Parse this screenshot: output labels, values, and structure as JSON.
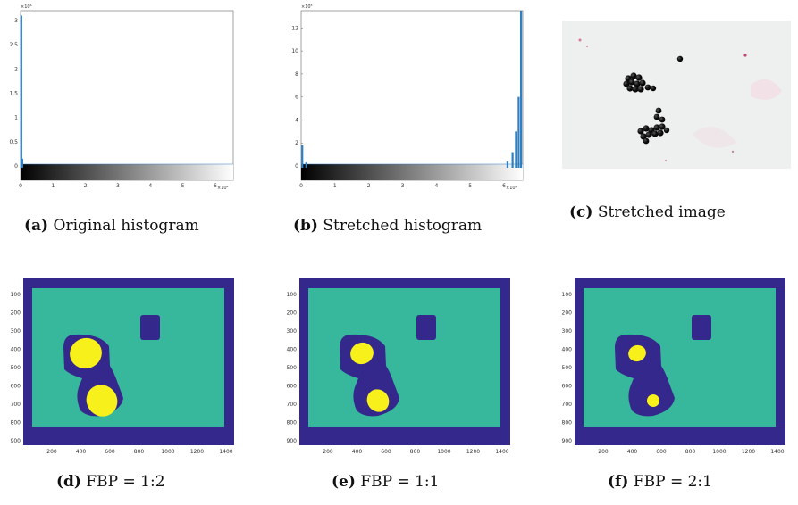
{
  "panels": {
    "a": {
      "letter": "(a)",
      "caption": "Original histogram",
      "chart_data": {
        "type": "bar",
        "title": "",
        "y_multiplier": "×10⁶",
        "x_multiplier": "×10⁴",
        "yticks": [
          "3",
          "2.5",
          "2",
          "1.5",
          "1",
          "0.5",
          "0"
        ],
        "xticks": [
          "0",
          "1",
          "2",
          "3",
          "4",
          "5",
          "6"
        ],
        "xlim": [
          0,
          65535
        ],
        "ylim": [
          0,
          3.2
        ],
        "bars": [
          {
            "x": 200,
            "value": 3.1
          },
          {
            "x": 500,
            "value": 0.15
          }
        ],
        "bar_color": "#2f7fc1"
      }
    },
    "b": {
      "letter": "(b)",
      "caption": "Stretched histogram",
      "chart_data": {
        "type": "bar",
        "title": "",
        "y_multiplier": "×10⁵",
        "x_multiplier": "×10⁴",
        "yticks": [
          "12",
          "10",
          "8",
          "6",
          "4",
          "2",
          "0"
        ],
        "xticks": [
          "0",
          "1",
          "2",
          "3",
          "4",
          "5",
          "6"
        ],
        "xlim": [
          0,
          65535
        ],
        "ylim": [
          0,
          13.5
        ],
        "bars": [
          {
            "x": 300,
            "value": 1.8
          },
          {
            "x": 1500,
            "value": 0.3
          },
          {
            "x": 61000,
            "value": 0.4
          },
          {
            "x": 62500,
            "value": 1.2
          },
          {
            "x": 63500,
            "value": 3.0
          },
          {
            "x": 64300,
            "value": 6.0
          },
          {
            "x": 65000,
            "value": 13.5
          }
        ],
        "bar_color": "#2f7fc1"
      }
    },
    "c": {
      "letter": "(c)",
      "caption": "Stretched image"
    },
    "d": {
      "letter": "(d)",
      "caption": "FBP = 1:2"
    },
    "e": {
      "letter": "(e)",
      "caption": "FBP = 1:1"
    },
    "f": {
      "letter": "(f)",
      "caption": "FBP = 2:1"
    }
  },
  "segmentation_axes": {
    "yticks": [
      "100",
      "200",
      "300",
      "400",
      "500",
      "600",
      "700",
      "800",
      "900"
    ],
    "xticks": [
      "200",
      "400",
      "600",
      "800",
      "1000",
      "1200",
      "1400"
    ]
  },
  "colors": {
    "background_class": "#37b79b",
    "border_class": "#35288c",
    "foreground_class": "#f7f01b",
    "hist_bar": "#2f7fc1"
  }
}
